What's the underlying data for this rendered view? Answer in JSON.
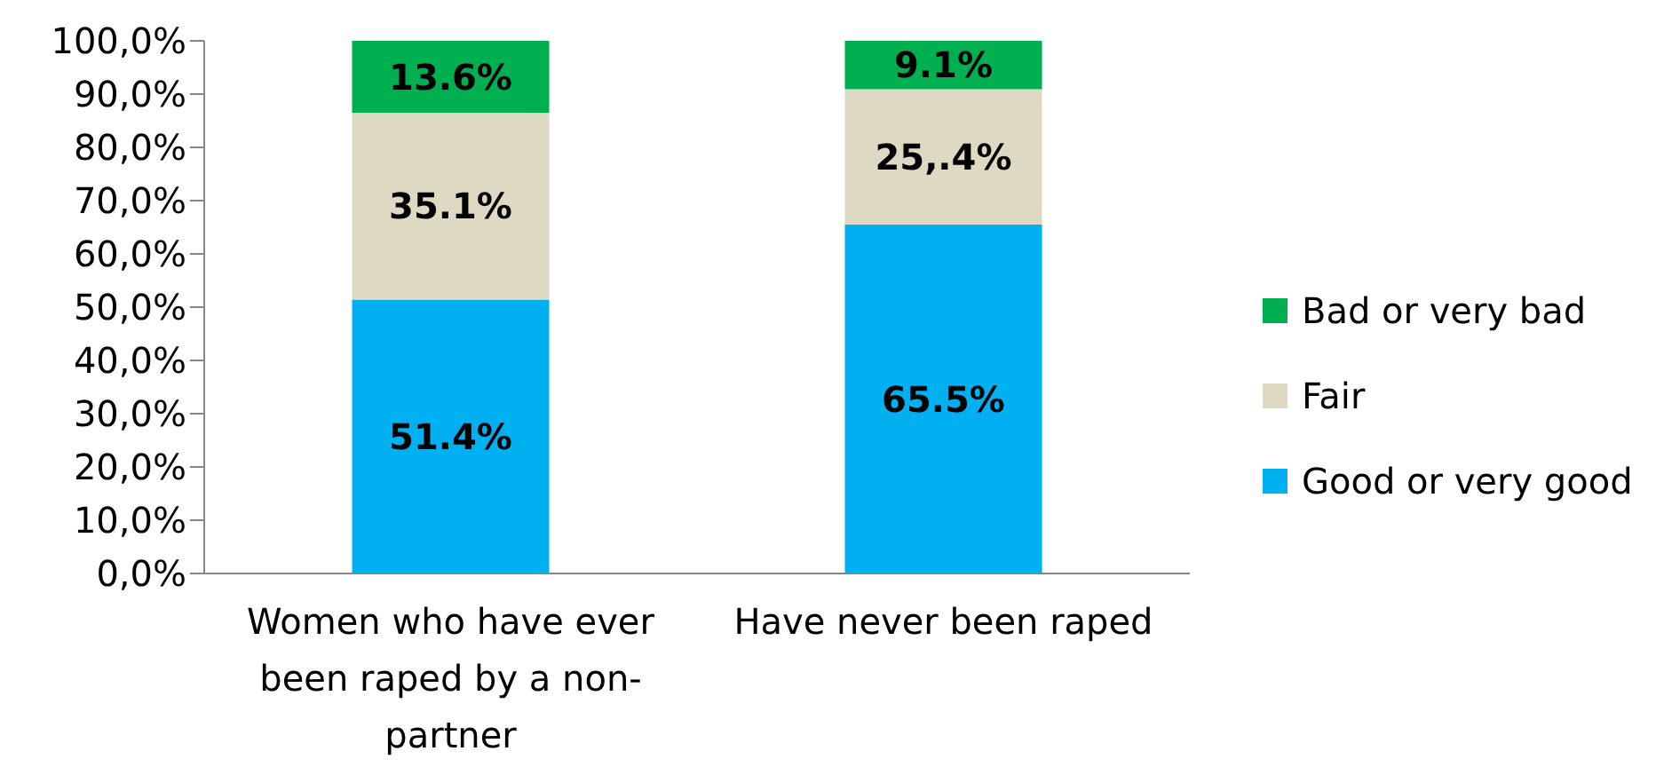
{
  "chart_data": {
    "type": "bar",
    "stacked": true,
    "categories": [
      "Women who have ever been raped by a non-partner",
      "Have never been raped"
    ],
    "series": [
      {
        "name": "Good or very good",
        "color": "#00b0f0",
        "values": [
          51.4,
          65.5
        ],
        "value_labels": [
          "51.4%",
          "65.5%"
        ]
      },
      {
        "name": "Fair",
        "color": "#ddd9c3",
        "values": [
          35.1,
          25.4
        ],
        "value_labels": [
          "35.1%",
          "25,.4%"
        ]
      },
      {
        "name": "Bad or very bad",
        "color": "#00b050",
        "values": [
          13.6,
          9.1
        ],
        "value_labels": [
          "13.6%",
          "9.1%"
        ]
      }
    ],
    "ylim": [
      0,
      100
    ],
    "yticks": [
      {
        "value": 0,
        "label": "0,0%"
      },
      {
        "value": 10,
        "label": "10,0%"
      },
      {
        "value": 20,
        "label": "20,0%"
      },
      {
        "value": 30,
        "label": "30,0%"
      },
      {
        "value": 40,
        "label": "40,0%"
      },
      {
        "value": 50,
        "label": "50,0%"
      },
      {
        "value": 60,
        "label": "60,0%"
      },
      {
        "value": 70,
        "label": "70,0%"
      },
      {
        "value": 80,
        "label": "80,0%"
      },
      {
        "value": 90,
        "label": "90,0%"
      },
      {
        "value": 100,
        "label": "100,0%"
      }
    ],
    "grid": false,
    "legend": "right"
  }
}
